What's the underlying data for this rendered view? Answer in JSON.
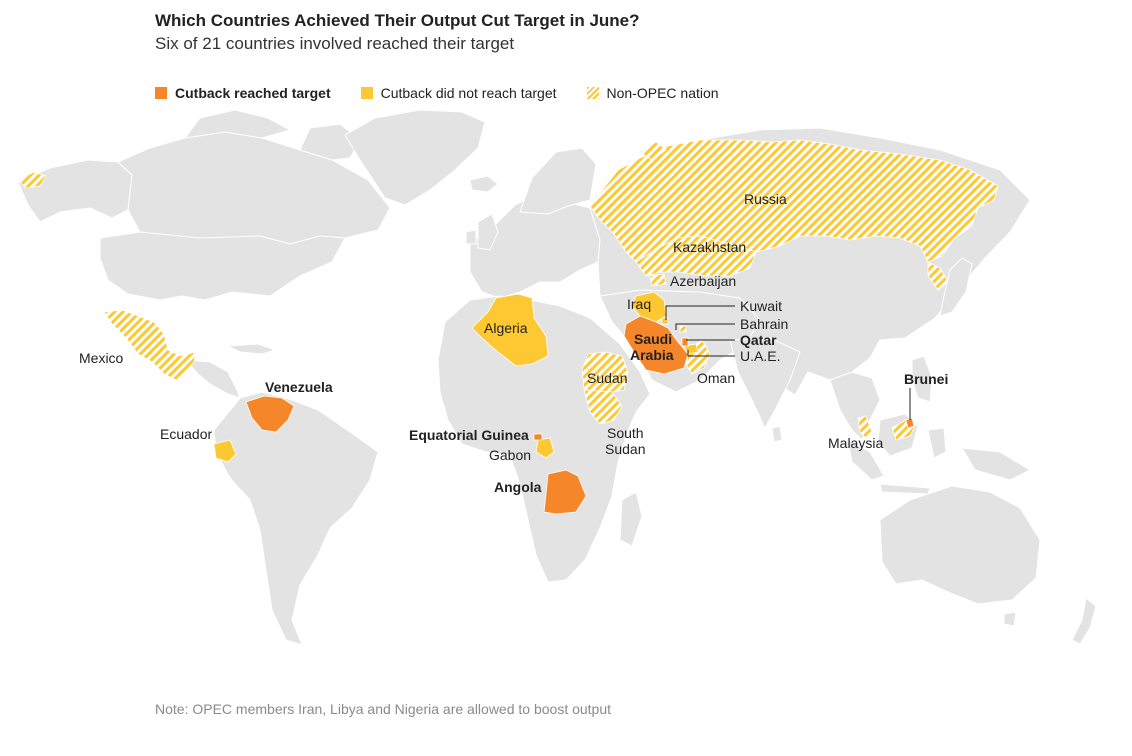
{
  "header": {
    "title": "Which Countries Achieved Their Output Cut Target in June?",
    "subtitle": "Six of 21 countries involved reached their target"
  },
  "legend": {
    "reached": "Cutback reached target",
    "not_reached": "Cutback did not reach target",
    "non_opec": "Non-OPEC nation"
  },
  "colors": {
    "reached": "#f6862a",
    "not_reached": "#fdc832",
    "land": "#e3e3e3",
    "border": "#ffffff"
  },
  "countries": {
    "russia": "Russia",
    "kazakhstan": "Kazakhstan",
    "azerbaijan": "Azerbaijan",
    "mexico": "Mexico",
    "algeria": "Algeria",
    "iraq": "Iraq",
    "kuwait": "Kuwait",
    "bahrain": "Bahrain",
    "qatar": "Qatar",
    "saudi_line1": "Saudi",
    "saudi_line2": "Arabia",
    "uae": "U.A.E.",
    "oman": "Oman",
    "sudan": "Sudan",
    "south_sudan_line1": "South",
    "south_sudan_line2": "Sudan",
    "venezuela": "Venezuela",
    "ecuador": "Ecuador",
    "equatorial_guinea": "Equatorial Guinea",
    "gabon": "Gabon",
    "angola": "Angola",
    "brunei": "Brunei",
    "malaysia": "Malaysia"
  },
  "note": "Note: OPEC members Iran, Libya and Nigeria are allowed to boost output"
}
